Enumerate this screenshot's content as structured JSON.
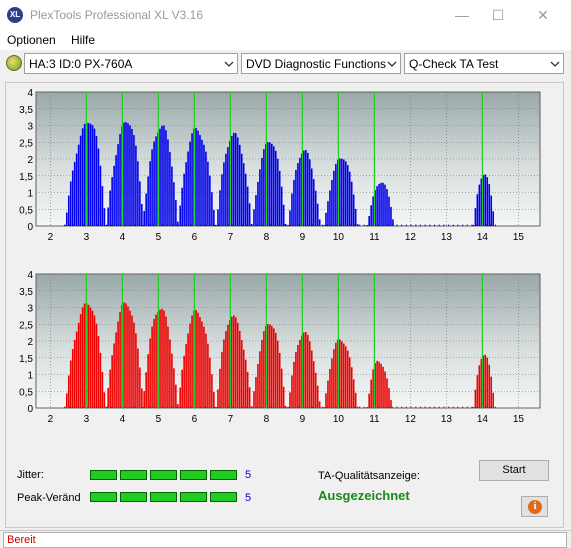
{
  "window": {
    "title": "PlexTools Professional XL V3.16",
    "app_icon_text": "XL",
    "minimize_glyph": "—",
    "maximize_glyph": "☐",
    "close_glyph": "✕"
  },
  "menu": [
    "Optionen",
    "Hilfe"
  ],
  "toolbar": {
    "device": "HA:3 ID:0  PX-760A",
    "function": "DVD Diagnostic Functions",
    "test": "Q-Check TA Test"
  },
  "chart_data": [
    {
      "type": "bar",
      "name": "top",
      "color": "#0000ee",
      "x_ticks": [
        2,
        3,
        4,
        5,
        6,
        7,
        8,
        9,
        10,
        11,
        12,
        13,
        14,
        15
      ],
      "y_ticks": [
        "0",
        "0,5",
        "1",
        "1,5",
        "2",
        "2,5",
        "3",
        "3,5",
        "4"
      ],
      "ylim": [
        0,
        4
      ],
      "xlim": [
        1.6,
        15.6
      ],
      "peaks": [
        {
          "x": 3.1,
          "height": 3.2,
          "start": 2.4,
          "end": 3.55
        },
        {
          "x": 4.15,
          "height": 3.2,
          "start": 3.55,
          "end": 4.6
        },
        {
          "x": 5.1,
          "height": 3.05,
          "start": 4.55,
          "end": 5.55
        },
        {
          "x": 6.05,
          "height": 2.95,
          "start": 5.55,
          "end": 6.6
        },
        {
          "x": 7.1,
          "height": 2.8,
          "start": 6.6,
          "end": 7.6
        },
        {
          "x": 8.1,
          "height": 2.6,
          "start": 7.6,
          "end": 8.55
        },
        {
          "x": 9.05,
          "height": 2.3,
          "start": 8.6,
          "end": 9.5
        },
        {
          "x": 10.1,
          "height": 2.1,
          "start": 9.6,
          "end": 10.55
        },
        {
          "x": 11.2,
          "height": 1.35,
          "start": 10.8,
          "end": 11.55
        },
        {
          "x": 14.05,
          "height": 1.6,
          "start": 13.75,
          "end": 14.35
        }
      ],
      "green_lines": [
        3,
        4,
        5,
        6,
        7,
        8,
        9,
        10,
        11,
        14
      ]
    },
    {
      "type": "bar",
      "name": "bottom",
      "color": "#ee0000",
      "x_ticks": [
        2,
        3,
        4,
        5,
        6,
        7,
        8,
        9,
        10,
        11,
        12,
        13,
        14,
        15
      ],
      "y_ticks": [
        "0",
        "0,5",
        "1",
        "1,5",
        "2",
        "2,5",
        "3",
        "3,5",
        "4"
      ],
      "ylim": [
        0,
        4
      ],
      "xlim": [
        1.6,
        15.6
      ],
      "peaks": [
        {
          "x": 3.05,
          "height": 3.2,
          "start": 2.4,
          "end": 3.55
        },
        {
          "x": 4.1,
          "height": 3.2,
          "start": 3.55,
          "end": 4.6
        },
        {
          "x": 5.05,
          "height": 3.05,
          "start": 4.55,
          "end": 5.55
        },
        {
          "x": 6.05,
          "height": 2.95,
          "start": 5.55,
          "end": 6.6
        },
        {
          "x": 7.05,
          "height": 2.8,
          "start": 6.6,
          "end": 7.6
        },
        {
          "x": 8.1,
          "height": 2.6,
          "start": 7.6,
          "end": 8.55
        },
        {
          "x": 9.05,
          "height": 2.3,
          "start": 8.6,
          "end": 9.5
        },
        {
          "x": 10.05,
          "height": 2.1,
          "start": 9.6,
          "end": 10.55
        },
        {
          "x": 11.1,
          "height": 1.45,
          "start": 10.8,
          "end": 11.5
        },
        {
          "x": 14.05,
          "height": 1.65,
          "start": 13.75,
          "end": 14.35
        }
      ],
      "green_lines": [
        3,
        4,
        5,
        6,
        7,
        8,
        9,
        10,
        11,
        14
      ]
    }
  ],
  "metrics": {
    "jitter_label": "Jitter:",
    "jitter_value": "5",
    "jitter_segments": 5,
    "peak_label": "Peak-Veränd",
    "peak_value": "5",
    "peak_segments": 5
  },
  "quality": {
    "label": "TA-Qualitätsanzeige:",
    "rating": "Ausgezeichnet"
  },
  "buttons": {
    "start": "Start",
    "info_glyph": "i"
  },
  "status": "Bereit"
}
